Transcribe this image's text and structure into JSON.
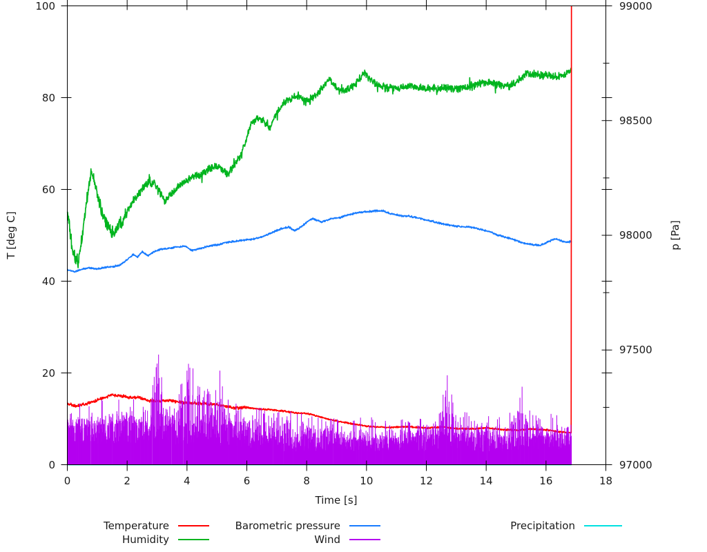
{
  "chart_data": {
    "type": "line",
    "title": "",
    "xlabel": "Time [s]",
    "ylabel": "T [deg C]",
    "y2label": "p [Pa]",
    "xlim": [
      0,
      18
    ],
    "ylim": [
      0,
      100
    ],
    "y2lim": [
      97000,
      99000
    ],
    "grid": false,
    "legend_position": "below-plot, 3 columns, 2 rows",
    "x_ticks": {
      "values": [
        0,
        2,
        4,
        6,
        8,
        10,
        12,
        14,
        16,
        18
      ],
      "labels": [
        "0",
        "2",
        "4",
        "6",
        "8",
        "10",
        "12",
        "14",
        "16",
        "18"
      ]
    },
    "y_ticks": {
      "values": [
        0,
        20,
        40,
        60,
        80,
        100
      ],
      "labels": [
        "0",
        "20",
        "40",
        "60",
        "80",
        "100"
      ]
    },
    "y2_ticks": {
      "values": [
        97000,
        97500,
        98000,
        98500,
        99000
      ],
      "labels": [
        "97000",
        "97500",
        "98000",
        "98500",
        "99000"
      ],
      "minor_values": [
        97250,
        97750,
        98250,
        98750
      ]
    },
    "legend": [
      {
        "label": "Temperature",
        "color": "#ff0000",
        "row": 0,
        "col": 0
      },
      {
        "label": "Humidity",
        "color": "#00b41e",
        "row": 1,
        "col": 0
      },
      {
        "label": "Barometric pressure",
        "color": "#187bff",
        "row": 0,
        "col": 1
      },
      {
        "label": "Wind",
        "color": "#b400f0",
        "row": 1,
        "col": 1
      },
      {
        "label": "Precipitation",
        "color": "#00e0e0",
        "row": 0,
        "col": 2
      }
    ],
    "t_end": 16.85,
    "series": [
      {
        "name": "Humidity",
        "axis": "y1",
        "color": "#00b41e",
        "style": "noisy-line",
        "unit": "%",
        "noise": {
          "amp": 1.0,
          "amp_early": 1.6,
          "early_until": 2.0
        },
        "points": [
          [
            0,
            55.5
          ],
          [
            0.1,
            50
          ],
          [
            0.2,
            46
          ],
          [
            0.35,
            43.5
          ],
          [
            0.5,
            50
          ],
          [
            0.6,
            55
          ],
          [
            0.7,
            60
          ],
          [
            0.8,
            63.5
          ],
          [
            0.9,
            62
          ],
          [
            1.0,
            59
          ],
          [
            1.2,
            54
          ],
          [
            1.4,
            51.5
          ],
          [
            1.55,
            50.3
          ],
          [
            1.7,
            52
          ],
          [
            1.9,
            54
          ],
          [
            2.1,
            56.5
          ],
          [
            2.3,
            58.5
          ],
          [
            2.5,
            60.3
          ],
          [
            2.7,
            61.3
          ],
          [
            2.9,
            61.2
          ],
          [
            3.1,
            59.5
          ],
          [
            3.26,
            57.4
          ],
          [
            3.4,
            58.5
          ],
          [
            3.6,
            60
          ],
          [
            3.8,
            61
          ],
          [
            4.0,
            61.8
          ],
          [
            4.2,
            62.6
          ],
          [
            4.5,
            63.3
          ],
          [
            4.7,
            64.5
          ],
          [
            5.0,
            65.2
          ],
          [
            5.15,
            64.3
          ],
          [
            5.35,
            63.3
          ],
          [
            5.6,
            65.5
          ],
          [
            5.8,
            67.5
          ],
          [
            6.0,
            71
          ],
          [
            6.15,
            74.5
          ],
          [
            6.3,
            75.5
          ],
          [
            6.5,
            75.3
          ],
          [
            6.65,
            74
          ],
          [
            6.76,
            73.2
          ],
          [
            6.9,
            75.5
          ],
          [
            7.1,
            77.5
          ],
          [
            7.3,
            79.3
          ],
          [
            7.55,
            80.2
          ],
          [
            7.75,
            80.3
          ],
          [
            7.95,
            79.0
          ],
          [
            8.1,
            79.2
          ],
          [
            8.3,
            80.5
          ],
          [
            8.55,
            82.3
          ],
          [
            8.75,
            84.2
          ],
          [
            8.9,
            83
          ],
          [
            9.05,
            81.6
          ],
          [
            9.3,
            81.5
          ],
          [
            9.5,
            82.2
          ],
          [
            9.7,
            83.5
          ],
          [
            9.9,
            85.3
          ],
          [
            10.0,
            84.8
          ],
          [
            10.2,
            83.4
          ],
          [
            10.45,
            82.7
          ],
          [
            10.7,
            82.2
          ],
          [
            11.0,
            82.1
          ],
          [
            11.3,
            82.3
          ],
          [
            11.5,
            82.8
          ],
          [
            11.7,
            82.3
          ],
          [
            12.0,
            81.9
          ],
          [
            12.3,
            82.0
          ],
          [
            12.6,
            82.2
          ],
          [
            12.9,
            81.9
          ],
          [
            13.2,
            82.1
          ],
          [
            13.5,
            82.4
          ],
          [
            13.8,
            83.2
          ],
          [
            14.1,
            83.5
          ],
          [
            14.35,
            82.9
          ],
          [
            14.6,
            82.4
          ],
          [
            14.85,
            82.6
          ],
          [
            15.1,
            84.0
          ],
          [
            15.35,
            85.3
          ],
          [
            15.6,
            85.1
          ],
          [
            15.85,
            84.8
          ],
          [
            16.1,
            84.9
          ],
          [
            16.3,
            84.3
          ],
          [
            16.5,
            84.8
          ],
          [
            16.7,
            85.2
          ],
          [
            16.85,
            86.0
          ]
        ]
      },
      {
        "name": "Barometric pressure",
        "axis": "y2",
        "color": "#187bff",
        "style": "noisy-line",
        "unit": "Pa",
        "noise": {
          "amp": 4.5
        },
        "points": [
          [
            0,
            97850
          ],
          [
            0.25,
            97842
          ],
          [
            0.5,
            97852
          ],
          [
            0.75,
            97858
          ],
          [
            1.0,
            97853
          ],
          [
            1.25,
            97860
          ],
          [
            1.5,
            97863
          ],
          [
            1.75,
            97870
          ],
          [
            1.95,
            97888
          ],
          [
            2.2,
            97916
          ],
          [
            2.35,
            97905
          ],
          [
            2.5,
            97928
          ],
          [
            2.7,
            97912
          ],
          [
            2.9,
            97928
          ],
          [
            3.1,
            97938
          ],
          [
            3.4,
            97943
          ],
          [
            3.7,
            97950
          ],
          [
            3.95,
            97952
          ],
          [
            4.15,
            97933
          ],
          [
            4.4,
            97940
          ],
          [
            4.7,
            97952
          ],
          [
            5.0,
            97958
          ],
          [
            5.3,
            97969
          ],
          [
            5.6,
            97974
          ],
          [
            5.9,
            97979
          ],
          [
            6.2,
            97983
          ],
          [
            6.5,
            97993
          ],
          [
            6.8,
            98008
          ],
          [
            7.0,
            98022
          ],
          [
            7.2,
            98030
          ],
          [
            7.4,
            98037
          ],
          [
            7.6,
            98020
          ],
          [
            7.8,
            98035
          ],
          [
            8.05,
            98062
          ],
          [
            8.2,
            98072
          ],
          [
            8.5,
            98058
          ],
          [
            8.8,
            98072
          ],
          [
            9.1,
            98077
          ],
          [
            9.4,
            98090
          ],
          [
            9.7,
            98098
          ],
          [
            10.0,
            98103
          ],
          [
            10.3,
            98106
          ],
          [
            10.55,
            98107
          ],
          [
            10.8,
            98095
          ],
          [
            11.1,
            98086
          ],
          [
            11.4,
            98084
          ],
          [
            11.7,
            98077
          ],
          [
            12.0,
            98067
          ],
          [
            12.3,
            98058
          ],
          [
            12.6,
            98048
          ],
          [
            12.9,
            98041
          ],
          [
            13.2,
            98037
          ],
          [
            13.5,
            98035
          ],
          [
            13.8,
            98026
          ],
          [
            14.1,
            98016
          ],
          [
            14.4,
            98001
          ],
          [
            14.7,
            97990
          ],
          [
            15.0,
            97977
          ],
          [
            15.3,
            97964
          ],
          [
            15.6,
            97959
          ],
          [
            15.8,
            97956
          ],
          [
            16.0,
            97966
          ],
          [
            16.2,
            97980
          ],
          [
            16.35,
            97984
          ],
          [
            16.5,
            97976
          ],
          [
            16.65,
            97971
          ],
          [
            16.85,
            97972
          ]
        ]
      },
      {
        "name": "Temperature",
        "axis": "y1",
        "color": "#ff0000",
        "style": "noisy-line",
        "unit": "deg C",
        "noise": {
          "amp": 0.2,
          "amp_early": 0.38,
          "early_until": 6.0
        },
        "points": [
          [
            0,
            13.4
          ],
          [
            0.3,
            12.7
          ],
          [
            0.6,
            13.2
          ],
          [
            0.9,
            13.8
          ],
          [
            1.2,
            14.6
          ],
          [
            1.5,
            15.2
          ],
          [
            1.8,
            15.0
          ],
          [
            2.1,
            14.6
          ],
          [
            2.4,
            14.7
          ],
          [
            2.7,
            14.0
          ],
          [
            3.0,
            13.9
          ],
          [
            3.3,
            14.0
          ],
          [
            3.6,
            13.8
          ],
          [
            4.0,
            13.5
          ],
          [
            4.4,
            13.4
          ],
          [
            4.8,
            13.2
          ],
          [
            5.2,
            12.9
          ],
          [
            5.6,
            12.4
          ],
          [
            6.0,
            12.5
          ],
          [
            6.4,
            12.1
          ],
          [
            6.8,
            12.0
          ],
          [
            7.2,
            11.7
          ],
          [
            7.6,
            11.3
          ],
          [
            8.0,
            11.2
          ],
          [
            8.4,
            10.5
          ],
          [
            8.8,
            9.8
          ],
          [
            9.2,
            9.3
          ],
          [
            9.6,
            8.8
          ],
          [
            10.0,
            8.4
          ],
          [
            10.4,
            8.2
          ],
          [
            10.8,
            8.1
          ],
          [
            11.2,
            8.3
          ],
          [
            11.6,
            8.2
          ],
          [
            12.0,
            8.0
          ],
          [
            12.5,
            8.2
          ],
          [
            13.0,
            7.9
          ],
          [
            13.5,
            7.8
          ],
          [
            14.0,
            8.0
          ],
          [
            14.5,
            7.7
          ],
          [
            15.0,
            7.5
          ],
          [
            15.5,
            7.8
          ],
          [
            16.0,
            7.6
          ],
          [
            16.4,
            7.2
          ],
          [
            16.8,
            7.0
          ],
          [
            16.84,
            7.0
          ],
          [
            16.85,
            100
          ]
        ]
      },
      {
        "name": "Precipitation",
        "axis": "y1",
        "color": "#00e0e0",
        "style": "flat-line",
        "unit": "",
        "points": [
          [
            0,
            0
          ],
          [
            16.85,
            0
          ]
        ]
      },
      {
        "name": "Wind",
        "axis": "y1",
        "color": "#b400f0",
        "style": "impulses-noise",
        "unit": "",
        "mass_keypoints": [
          [
            0,
            7
          ],
          [
            1,
            7
          ],
          [
            2,
            7.5
          ],
          [
            3,
            7
          ],
          [
            4,
            7.5
          ],
          [
            5,
            7
          ],
          [
            5.8,
            6.5
          ],
          [
            6.5,
            5
          ],
          [
            8,
            4.8
          ],
          [
            10,
            4.5
          ],
          [
            12,
            5
          ],
          [
            12.8,
            6
          ],
          [
            13.5,
            5
          ],
          [
            14,
            4.5
          ],
          [
            15,
            5
          ],
          [
            16,
            5
          ],
          [
            16.85,
            5.5
          ]
        ],
        "envelope_keypoints": [
          [
            0,
            13
          ],
          [
            0.5,
            13.5
          ],
          [
            1,
            14
          ],
          [
            1.5,
            15
          ],
          [
            1.9,
            16
          ],
          [
            2.5,
            14
          ],
          [
            3.05,
            24
          ],
          [
            3.3,
            14.5
          ],
          [
            3.6,
            15
          ],
          [
            4.05,
            22
          ],
          [
            4.2,
            21
          ],
          [
            4.5,
            16
          ],
          [
            5.1,
            20.5
          ],
          [
            5.4,
            15
          ],
          [
            5.8,
            13
          ],
          [
            6.3,
            13.5
          ],
          [
            7,
            12
          ],
          [
            7.5,
            12.5
          ],
          [
            8,
            11
          ],
          [
            8.5,
            10.5
          ],
          [
            9,
            11
          ],
          [
            9.5,
            10
          ],
          [
            10,
            10.5
          ],
          [
            10.5,
            10
          ],
          [
            11,
            10.5
          ],
          [
            11.5,
            10
          ],
          [
            12,
            11
          ],
          [
            12.4,
            13.5
          ],
          [
            12.7,
            19.5
          ],
          [
            13,
            13.5
          ],
          [
            13.3,
            12
          ],
          [
            13.8,
            11
          ],
          [
            14.2,
            11.5
          ],
          [
            14.6,
            10.5
          ],
          [
            15.2,
            17
          ],
          [
            15.6,
            11
          ],
          [
            16,
            11.5
          ],
          [
            16.4,
            11
          ],
          [
            16.85,
            12.5
          ]
        ],
        "spikes": [
          [
            3.05,
            24
          ],
          [
            4.05,
            22
          ],
          [
            4.2,
            21
          ],
          [
            5.1,
            20.5
          ],
          [
            12.7,
            19.5
          ],
          [
            15.2,
            17
          ]
        ]
      }
    ]
  }
}
